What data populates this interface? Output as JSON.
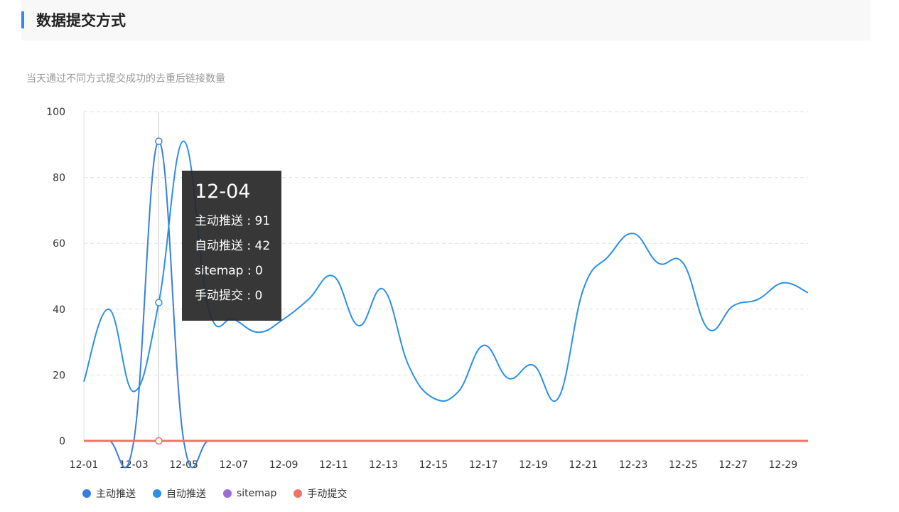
{
  "header": {
    "title": "数据提交方式"
  },
  "subtitle": "当天通过不同方式提交成功的去重后链接数量",
  "colors": {
    "accent": "#3385ff",
    "grid": "#e0e0e0"
  },
  "chart_data": {
    "type": "line",
    "title": "",
    "xlabel": "",
    "ylabel": "",
    "ylim": [
      0,
      100
    ],
    "yticks": [
      "0",
      "20",
      "40",
      "60",
      "80",
      "100"
    ],
    "grid": true,
    "legend_position": "bottom-left",
    "x": [
      "12-01",
      "12-02",
      "12-03",
      "12-04",
      "12-05",
      "12-06",
      "12-07",
      "12-08",
      "12-09",
      "12-10",
      "12-11",
      "12-12",
      "12-13",
      "12-14",
      "12-15",
      "12-16",
      "12-17",
      "12-18",
      "12-19",
      "12-20",
      "12-21",
      "12-22",
      "12-23",
      "12-24",
      "12-25",
      "12-26",
      "12-27",
      "12-28",
      "12-29",
      "12-30"
    ],
    "xtick_labels": [
      "12-01",
      "12-03",
      "12-05",
      "12-07",
      "12-09",
      "12-11",
      "12-13",
      "12-15",
      "12-17",
      "12-19",
      "12-21",
      "12-23",
      "12-25",
      "12-27",
      "12-29"
    ],
    "series": [
      {
        "name": "主动推送",
        "color": "#3a7de0",
        "values": [
          0,
          0,
          0,
          91,
          0,
          0,
          0,
          0,
          0,
          0,
          0,
          0,
          0,
          0,
          0,
          0,
          0,
          0,
          0,
          0,
          0,
          0,
          0,
          0,
          0,
          0,
          0,
          0,
          0,
          0
        ]
      },
      {
        "name": "自动推送",
        "color": "#2b8fe6",
        "values": [
          18,
          40,
          15,
          42,
          91,
          40,
          37,
          33,
          37,
          43,
          50,
          35,
          46,
          23,
          13,
          15,
          29,
          19,
          23,
          13,
          46,
          56,
          63,
          54,
          54,
          34,
          41,
          43,
          48,
          45
        ]
      },
      {
        "name": "sitemap",
        "color": "#9b6dd6",
        "values": [
          0,
          0,
          0,
          0,
          0,
          0,
          0,
          0,
          0,
          0,
          0,
          0,
          0,
          0,
          0,
          0,
          0,
          0,
          0,
          0,
          0,
          0,
          0,
          0,
          0,
          0,
          0,
          0,
          0,
          0
        ]
      },
      {
        "name": "手动提交",
        "color": "#ef7467",
        "values": [
          0,
          0,
          0,
          0,
          0,
          0,
          0,
          0,
          0,
          0,
          0,
          0,
          0,
          0,
          0,
          0,
          0,
          0,
          0,
          0,
          0,
          0,
          0,
          0,
          0,
          0,
          0,
          0,
          0,
          0
        ]
      }
    ],
    "tooltip": {
      "title": "12-04",
      "rows": [
        "主动推送 : 91",
        "自动推送 : 42",
        "sitemap : 0",
        "手动提交 : 0"
      ]
    }
  }
}
